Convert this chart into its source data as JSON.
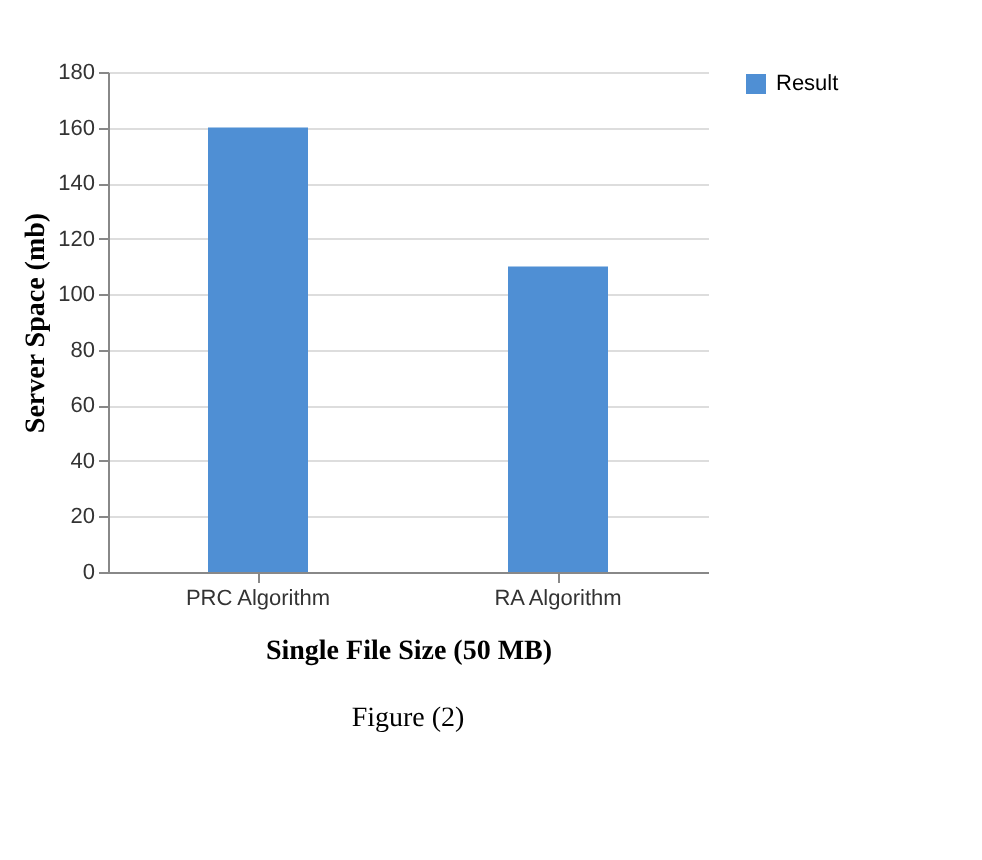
{
  "chart_data": {
    "type": "bar",
    "categories": [
      "PRC Algorithm",
      "RA Algorithm"
    ],
    "series": [
      {
        "name": "Result",
        "color": "#4f8fd4",
        "values": [
          160,
          110
        ]
      }
    ],
    "xlabel": "Single File Size (50 MB)",
    "ylabel": "Server Space (mb)",
    "ylim": [
      0,
      180
    ],
    "yticks": [
      0,
      20,
      40,
      60,
      80,
      100,
      120,
      140,
      160,
      180
    ],
    "grid": "y",
    "legend": "right",
    "annotations": [
      "Figure (2)"
    ]
  }
}
